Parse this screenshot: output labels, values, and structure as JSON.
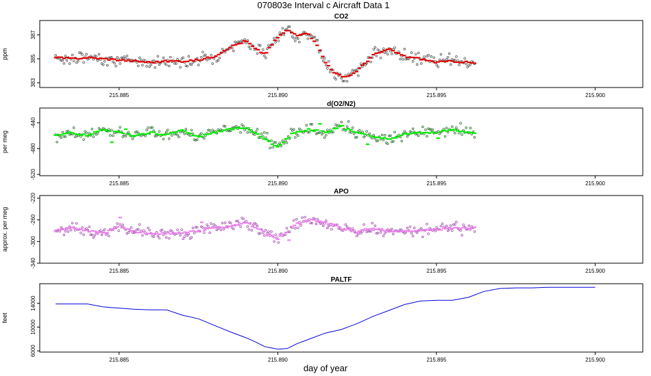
{
  "figure": {
    "title": "070803e   Interval c Aircraft Data 1",
    "xlabel": "day of year"
  },
  "chart_data": [
    {
      "type": "scatter",
      "title": "CO2",
      "ylabel": "ppm",
      "xlim": [
        215.8825,
        215.9015
      ],
      "ylim": [
        382.6,
        388.2
      ],
      "xticks": [
        "215.885",
        "215.890",
        "215.895",
        "215.900"
      ],
      "xtick_values": [
        215.885,
        215.89,
        215.895,
        215.9
      ],
      "yticks": [
        "383",
        "385",
        "387"
      ],
      "ytick_values": [
        383,
        385,
        387
      ],
      "colors": {
        "points": "#444444",
        "smooth": "#e00000"
      },
      "series": [
        {
          "name": "CO2",
          "x": [
            215.883,
            215.8835,
            215.884,
            215.8845,
            215.885,
            215.8855,
            215.886,
            215.8865,
            215.887,
            215.8875,
            215.888,
            215.8885,
            215.889,
            215.8893,
            215.8896,
            215.89,
            215.8903,
            215.8906,
            215.8909,
            215.8912,
            215.8915,
            215.8918,
            215.8921,
            215.8924,
            215.8927,
            215.893,
            215.8935,
            215.894,
            215.8945,
            215.895,
            215.8955,
            215.896,
            215.8962
          ],
          "values": [
            385.1,
            385.0,
            385.1,
            385.0,
            384.9,
            384.8,
            384.7,
            384.8,
            384.8,
            384.9,
            385.2,
            386.0,
            386.5,
            385.8,
            385.4,
            386.8,
            387.4,
            387.0,
            387.2,
            386.4,
            384.7,
            383.8,
            383.4,
            383.8,
            384.5,
            385.3,
            385.8,
            385.2,
            385.0,
            384.7,
            384.8,
            384.7,
            384.6
          ]
        }
      ]
    },
    {
      "type": "scatter",
      "title": "d(O2/N2)",
      "ylabel": "per meg",
      "xlim": [
        215.8825,
        215.9015
      ],
      "ylim": [
        -522,
        -417
      ],
      "xticks": [
        "215.885",
        "215.890",
        "215.895",
        "215.900"
      ],
      "xtick_values": [
        215.885,
        215.89,
        215.895,
        215.9
      ],
      "yticks": [
        "-520",
        "-480",
        "-440"
      ],
      "ytick_values": [
        -520,
        -480,
        -440
      ],
      "colors": {
        "points": "#1a5e1a",
        "smooth": "#00ee00"
      },
      "series": [
        {
          "name": "d(O2/N2)",
          "x": [
            215.883,
            215.8835,
            215.884,
            215.8845,
            215.885,
            215.8855,
            215.886,
            215.8865,
            215.887,
            215.8875,
            215.888,
            215.8885,
            215.889,
            215.8895,
            215.89,
            215.8905,
            215.891,
            215.8915,
            215.892,
            215.8925,
            215.893,
            215.8935,
            215.894,
            215.8945,
            215.895,
            215.8955,
            215.896,
            215.8962
          ],
          "values": [
            -460,
            -455,
            -460,
            -450,
            -455,
            -460,
            -455,
            -458,
            -452,
            -462,
            -455,
            -450,
            -448,
            -462,
            -478,
            -455,
            -450,
            -455,
            -445,
            -455,
            -462,
            -465,
            -458,
            -455,
            -455,
            -450,
            -455,
            -455
          ]
        }
      ]
    },
    {
      "type": "scatter",
      "title": "APO",
      "ylabel": "approx. per meg",
      "xlim": [
        215.8825,
        215.9015
      ],
      "ylim": [
        -340,
        -215
      ],
      "xticks": [
        "215.885",
        "215.890",
        "215.895",
        "215.900"
      ],
      "xtick_values": [
        215.885,
        215.89,
        215.895,
        215.9
      ],
      "yticks": [
        "-340",
        "-300",
        "-260",
        "-220"
      ],
      "ytick_values": [
        -340,
        -300,
        -260,
        -220
      ],
      "colors": {
        "points": "#9a3aa8",
        "smooth": "#ee82ee"
      },
      "series": [
        {
          "name": "APO",
          "x": [
            215.883,
            215.8835,
            215.884,
            215.8845,
            215.885,
            215.8855,
            215.886,
            215.8865,
            215.887,
            215.8875,
            215.888,
            215.8885,
            215.889,
            215.8895,
            215.89,
            215.8905,
            215.891,
            215.8915,
            215.892,
            215.8925,
            215.893,
            215.8935,
            215.894,
            215.8945,
            215.895,
            215.8955,
            215.896,
            215.8962
          ],
          "values": [
            -280,
            -275,
            -280,
            -285,
            -272,
            -282,
            -285,
            -285,
            -285,
            -280,
            -275,
            -272,
            -265,
            -280,
            -295,
            -270,
            -260,
            -265,
            -275,
            -282,
            -275,
            -280,
            -282,
            -280,
            -278,
            -275,
            -275,
            -275
          ]
        }
      ]
    },
    {
      "type": "line",
      "title": "PALTF",
      "ylabel": "feet",
      "xlim": [
        215.8825,
        215.9015
      ],
      "ylim": [
        5800,
        17300
      ],
      "xticks": [
        "215.885",
        "215.890",
        "215.895",
        "215.900"
      ],
      "xtick_values": [
        215.885,
        215.89,
        215.895,
        215.9
      ],
      "yticks": [
        "6000",
        "10000",
        "14000"
      ],
      "ytick_values": [
        6000,
        10000,
        14000
      ],
      "colors": {
        "line": "#0000dd"
      },
      "series": [
        {
          "name": "PALTF",
          "x": [
            215.883,
            215.8835,
            215.884,
            215.8845,
            215.885,
            215.8855,
            215.886,
            215.8865,
            215.887,
            215.8875,
            215.888,
            215.8885,
            215.889,
            215.8893,
            215.8896,
            215.89,
            215.8903,
            215.8906,
            215.891,
            215.8915,
            215.892,
            215.8925,
            215.893,
            215.8935,
            215.894,
            215.8945,
            215.895,
            215.8955,
            215.896,
            215.8965,
            215.897,
            215.8975,
            215.898,
            215.8985,
            215.899,
            215.8995,
            215.9
          ],
          "values": [
            13900,
            13900,
            13900,
            13400,
            13200,
            13000,
            12900,
            12900,
            12000,
            11400,
            10300,
            9200,
            8200,
            7500,
            6700,
            6300,
            6400,
            7200,
            8000,
            9000,
            9600,
            10600,
            11800,
            12800,
            13800,
            14400,
            14500,
            14500,
            15000,
            16000,
            16500,
            16600,
            16600,
            16700,
            16700,
            16700,
            16700
          ]
        }
      ]
    }
  ]
}
